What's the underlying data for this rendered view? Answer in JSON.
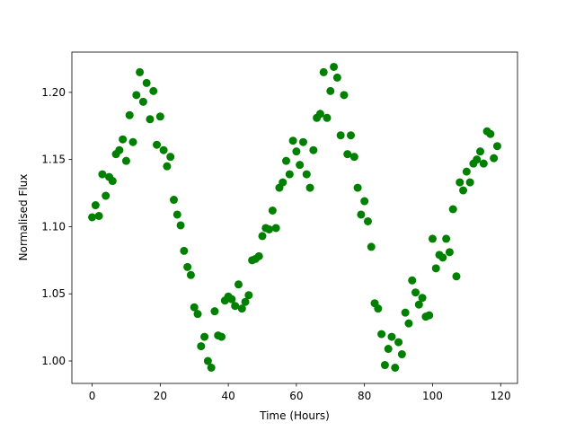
{
  "chart_data": {
    "type": "scatter",
    "xlabel": "Time (Hours)",
    "ylabel": "Normalised Flux",
    "color": "#008000",
    "x": [
      0,
      1,
      2,
      3,
      4,
      5,
      6,
      7,
      8,
      9,
      10,
      11,
      12,
      13,
      14,
      15,
      16,
      17,
      18,
      19,
      20,
      21,
      22,
      23,
      24,
      25,
      26,
      27,
      28,
      29,
      30,
      31,
      32,
      33,
      34,
      35,
      36,
      37,
      38,
      39,
      40,
      41,
      42,
      43,
      44,
      45,
      46,
      47,
      48,
      49,
      50,
      51,
      52,
      53,
      54,
      55,
      56,
      57,
      58,
      59,
      60,
      61,
      62,
      63,
      64,
      65,
      66,
      67,
      68,
      69,
      70,
      71,
      72,
      73,
      74,
      75,
      76,
      77,
      78,
      79,
      80,
      81,
      82,
      83,
      84,
      85,
      86,
      87,
      88,
      89,
      90,
      91,
      92,
      93,
      94,
      95,
      96,
      97,
      98,
      99,
      100,
      101,
      102,
      103,
      104,
      105,
      106,
      107,
      108,
      109,
      110,
      111,
      112,
      113,
      114,
      115,
      116,
      117,
      118,
      119
    ],
    "values": [
      1.107,
      1.116,
      1.108,
      1.139,
      1.123,
      1.137,
      1.134,
      1.154,
      1.157,
      1.165,
      1.149,
      1.183,
      1.163,
      1.198,
      1.215,
      1.193,
      1.207,
      1.18,
      1.201,
      1.161,
      1.182,
      1.157,
      1.145,
      1.152,
      1.12,
      1.109,
      1.101,
      1.082,
      1.07,
      1.064,
      1.04,
      1.035,
      1.011,
      1.018,
      1.0,
      0.995,
      1.037,
      1.019,
      1.018,
      1.045,
      1.048,
      1.046,
      1.041,
      1.057,
      1.039,
      1.044,
      1.049,
      1.075,
      1.076,
      1.078,
      1.093,
      1.099,
      1.098,
      1.112,
      1.099,
      1.129,
      1.133,
      1.149,
      1.139,
      1.164,
      1.156,
      1.146,
      1.163,
      1.139,
      1.129,
      1.157,
      1.181,
      1.184,
      1.215,
      1.181,
      1.201,
      1.219,
      1.211,
      1.168,
      1.198,
      1.154,
      1.168,
      1.152,
      1.129,
      1.109,
      1.119,
      1.104,
      1.085,
      1.043,
      1.039,
      1.02,
      0.997,
      1.009,
      1.018,
      0.995,
      1.014,
      1.005,
      1.036,
      1.028,
      1.06,
      1.051,
      1.042,
      1.047,
      1.033,
      1.034,
      1.091,
      1.069,
      1.079,
      1.077,
      1.091,
      1.081,
      1.113,
      1.063,
      1.133,
      1.127,
      1.141,
      1.133,
      1.147,
      1.15,
      1.156,
      1.147,
      1.171,
      1.169,
      1.151,
      1.16
    ],
    "xlim": [
      -5.95,
      124.95
    ],
    "xticks": [
      0,
      20,
      40,
      60,
      80,
      100,
      120
    ],
    "ylim": [
      0.9833,
      1.23
    ],
    "yticks": [
      {
        "value": 1,
        "label": "1.00"
      },
      1.05,
      {
        "value": 1.1,
        "label": "1.10"
      },
      1.15,
      {
        "value": 1.2,
        "label": "1.20"
      }
    ]
  }
}
